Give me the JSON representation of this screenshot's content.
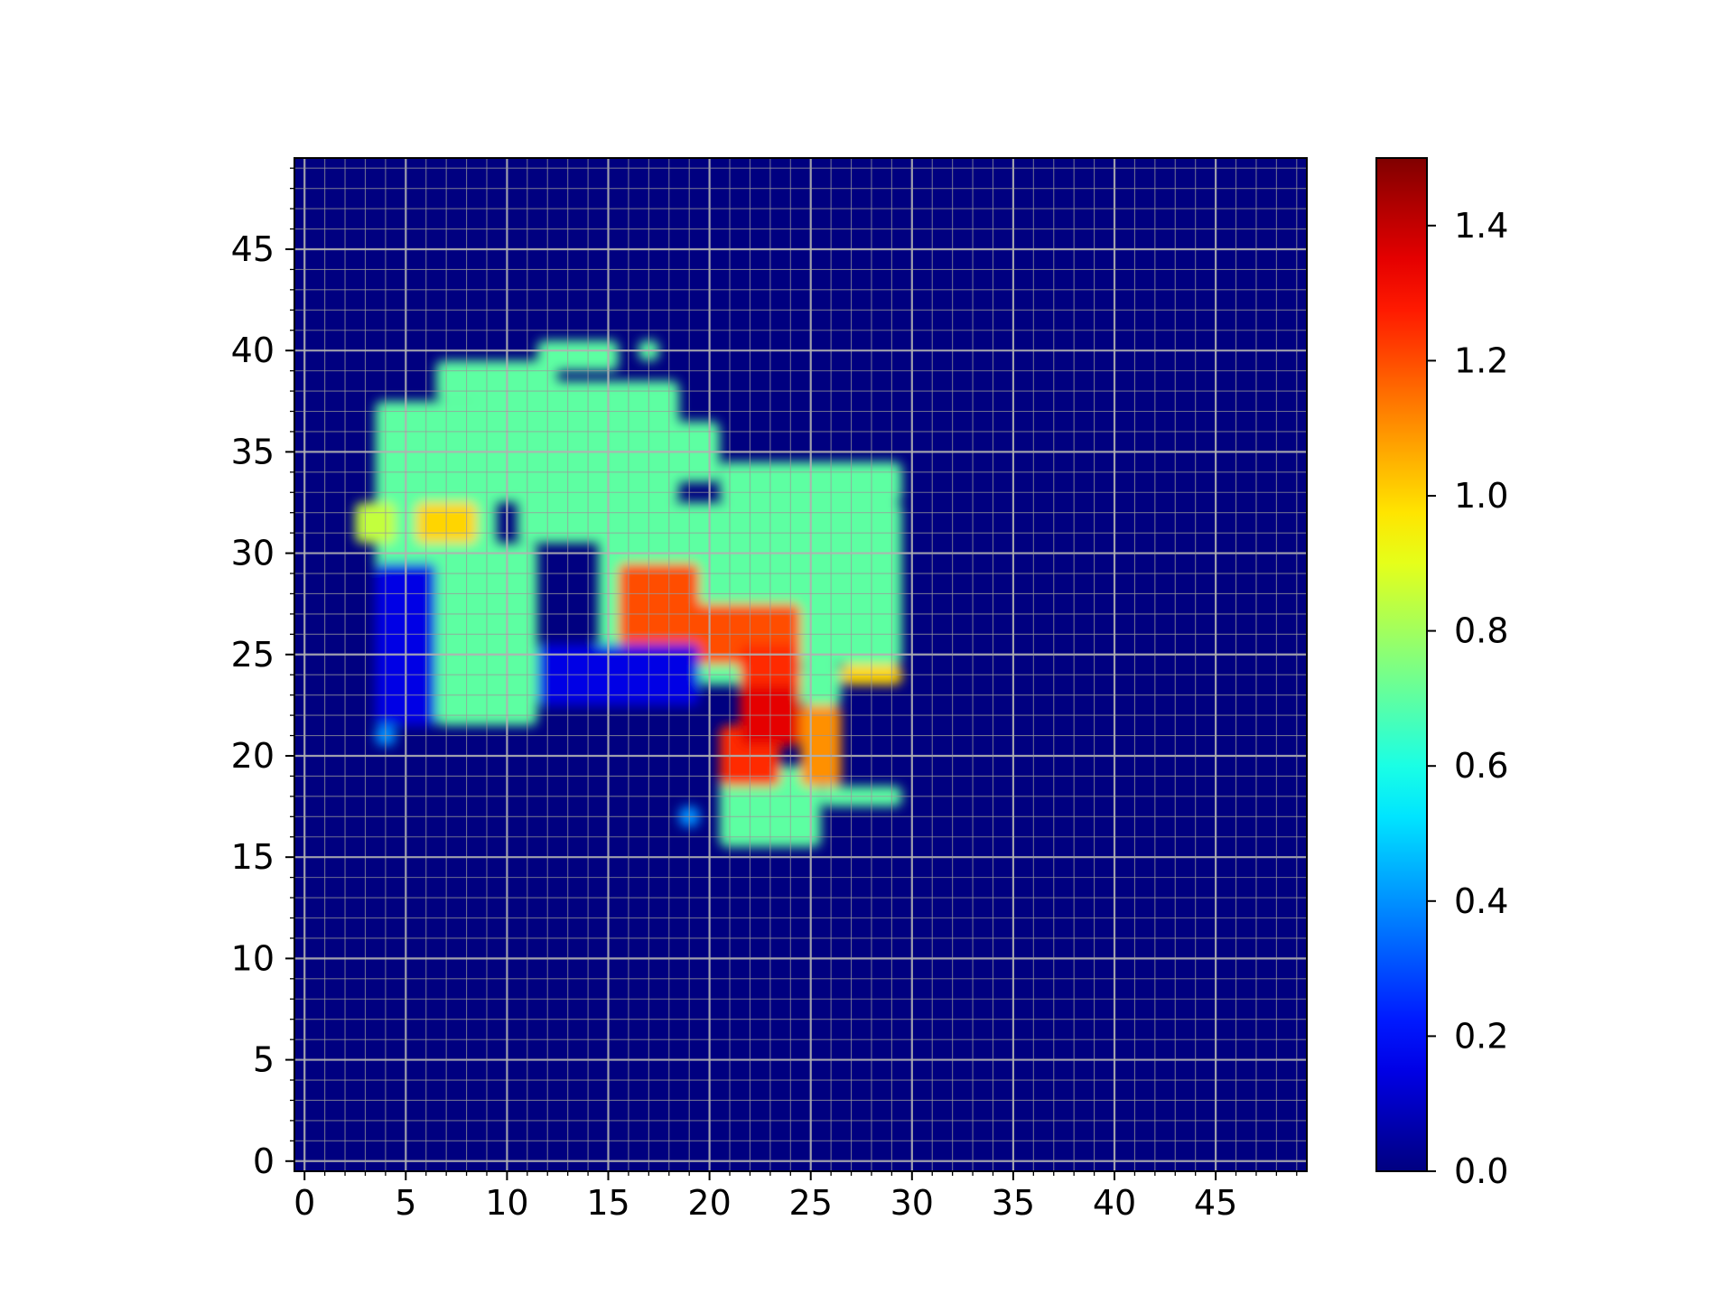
{
  "chart_data": {
    "type": "heatmap",
    "title": "",
    "xlabel": "",
    "ylabel": "",
    "grid": true,
    "x_range": [
      -0.5,
      49.5
    ],
    "y_range": [
      -0.5,
      49.5
    ],
    "x_ticks": [
      0,
      5,
      10,
      15,
      20,
      25,
      30,
      35,
      40,
      45
    ],
    "x_tick_labels": [
      "0",
      "5",
      "10",
      "15",
      "20",
      "25",
      "30",
      "35",
      "40",
      "45"
    ],
    "y_ticks": [
      0,
      5,
      10,
      15,
      20,
      25,
      30,
      35,
      40,
      45
    ],
    "y_tick_labels": [
      "0",
      "5",
      "10",
      "15",
      "20",
      "25",
      "30",
      "35",
      "40",
      "45"
    ],
    "colormap": "jet",
    "colorbar": {
      "range": [
        0.0,
        1.5
      ],
      "ticks": [
        0.0,
        0.2,
        0.4,
        0.6,
        0.8,
        1.0,
        1.2,
        1.4
      ],
      "tick_labels": [
        "0.0",
        "0.2",
        "0.4",
        "0.6",
        "0.8",
        "1.0",
        "1.2",
        "1.4"
      ],
      "placement": "right"
    },
    "background_value": 0.0,
    "regions": [
      {
        "x": [
          4,
          9
        ],
        "y": [
          29.5,
          37
        ],
        "value": 0.7
      },
      {
        "x": [
          7,
          12
        ],
        "y": [
          38,
          39
        ],
        "value": 0.7
      },
      {
        "x": [
          9,
          18
        ],
        "y": [
          33,
          38
        ],
        "value": 0.7
      },
      {
        "x": [
          12,
          15
        ],
        "y": [
          39.5,
          40
        ],
        "value": 0.7
      },
      {
        "x": [
          17,
          17
        ],
        "y": [
          40,
          40
        ],
        "value": 0.7
      },
      {
        "x": [
          17,
          18
        ],
        "y": [
          38,
          38
        ],
        "value": 0.7
      },
      {
        "x": [
          18,
          20
        ],
        "y": [
          34,
          36
        ],
        "value": 0.7
      },
      {
        "x": [
          7,
          11
        ],
        "y": [
          22,
          30
        ],
        "value": 0.7
      },
      {
        "x": [
          11,
          15
        ],
        "y": [
          31,
          33
        ],
        "value": 0.7
      },
      {
        "x": [
          15,
          29
        ],
        "y": [
          25,
          32
        ],
        "value": 0.7
      },
      {
        "x": [
          21,
          29
        ],
        "y": [
          33,
          34
        ],
        "value": 0.7
      },
      {
        "x": [
          20,
          22
        ],
        "y": [
          24,
          26
        ],
        "value": 0.7
      },
      {
        "x": [
          25,
          26
        ],
        "y": [
          23,
          24
        ],
        "value": 0.7
      },
      {
        "x": [
          21,
          25
        ],
        "y": [
          16,
          19
        ],
        "value": 0.7
      },
      {
        "x": [
          26,
          29
        ],
        "y": [
          18,
          18
        ],
        "value": 0.7
      },
      {
        "x": [
          3,
          4
        ],
        "y": [
          31,
          32
        ],
        "value": 0.85
      },
      {
        "x": [
          6,
          8
        ],
        "y": [
          31,
          32
        ],
        "value": 1.0
      },
      {
        "x": [
          27,
          29
        ],
        "y": [
          24,
          24
        ],
        "value": 1.0
      },
      {
        "x": [
          25,
          26
        ],
        "y": [
          19,
          22
        ],
        "value": 1.1
      },
      {
        "x": [
          16,
          19
        ],
        "y": [
          26,
          29
        ],
        "value": 1.2
      },
      {
        "x": [
          19,
          24
        ],
        "y": [
          25,
          27
        ],
        "value": 1.2
      },
      {
        "x": [
          22,
          24
        ],
        "y": [
          22,
          25
        ],
        "value": 1.25
      },
      {
        "x": [
          21,
          23
        ],
        "y": [
          19,
          21
        ],
        "value": 1.25
      },
      {
        "x": [
          22,
          24
        ],
        "y": [
          21,
          23
        ],
        "value": 1.35
      },
      {
        "x": [
          12,
          19
        ],
        "y": [
          23,
          25
        ],
        "value": 0.15
      },
      {
        "x": [
          4,
          6
        ],
        "y": [
          22,
          29
        ],
        "value": 0.15
      },
      {
        "x": [
          4,
          4
        ],
        "y": [
          21,
          21
        ],
        "value": 0.4
      },
      {
        "x": [
          19,
          19
        ],
        "y": [
          17,
          17
        ],
        "value": 0.4
      }
    ]
  }
}
